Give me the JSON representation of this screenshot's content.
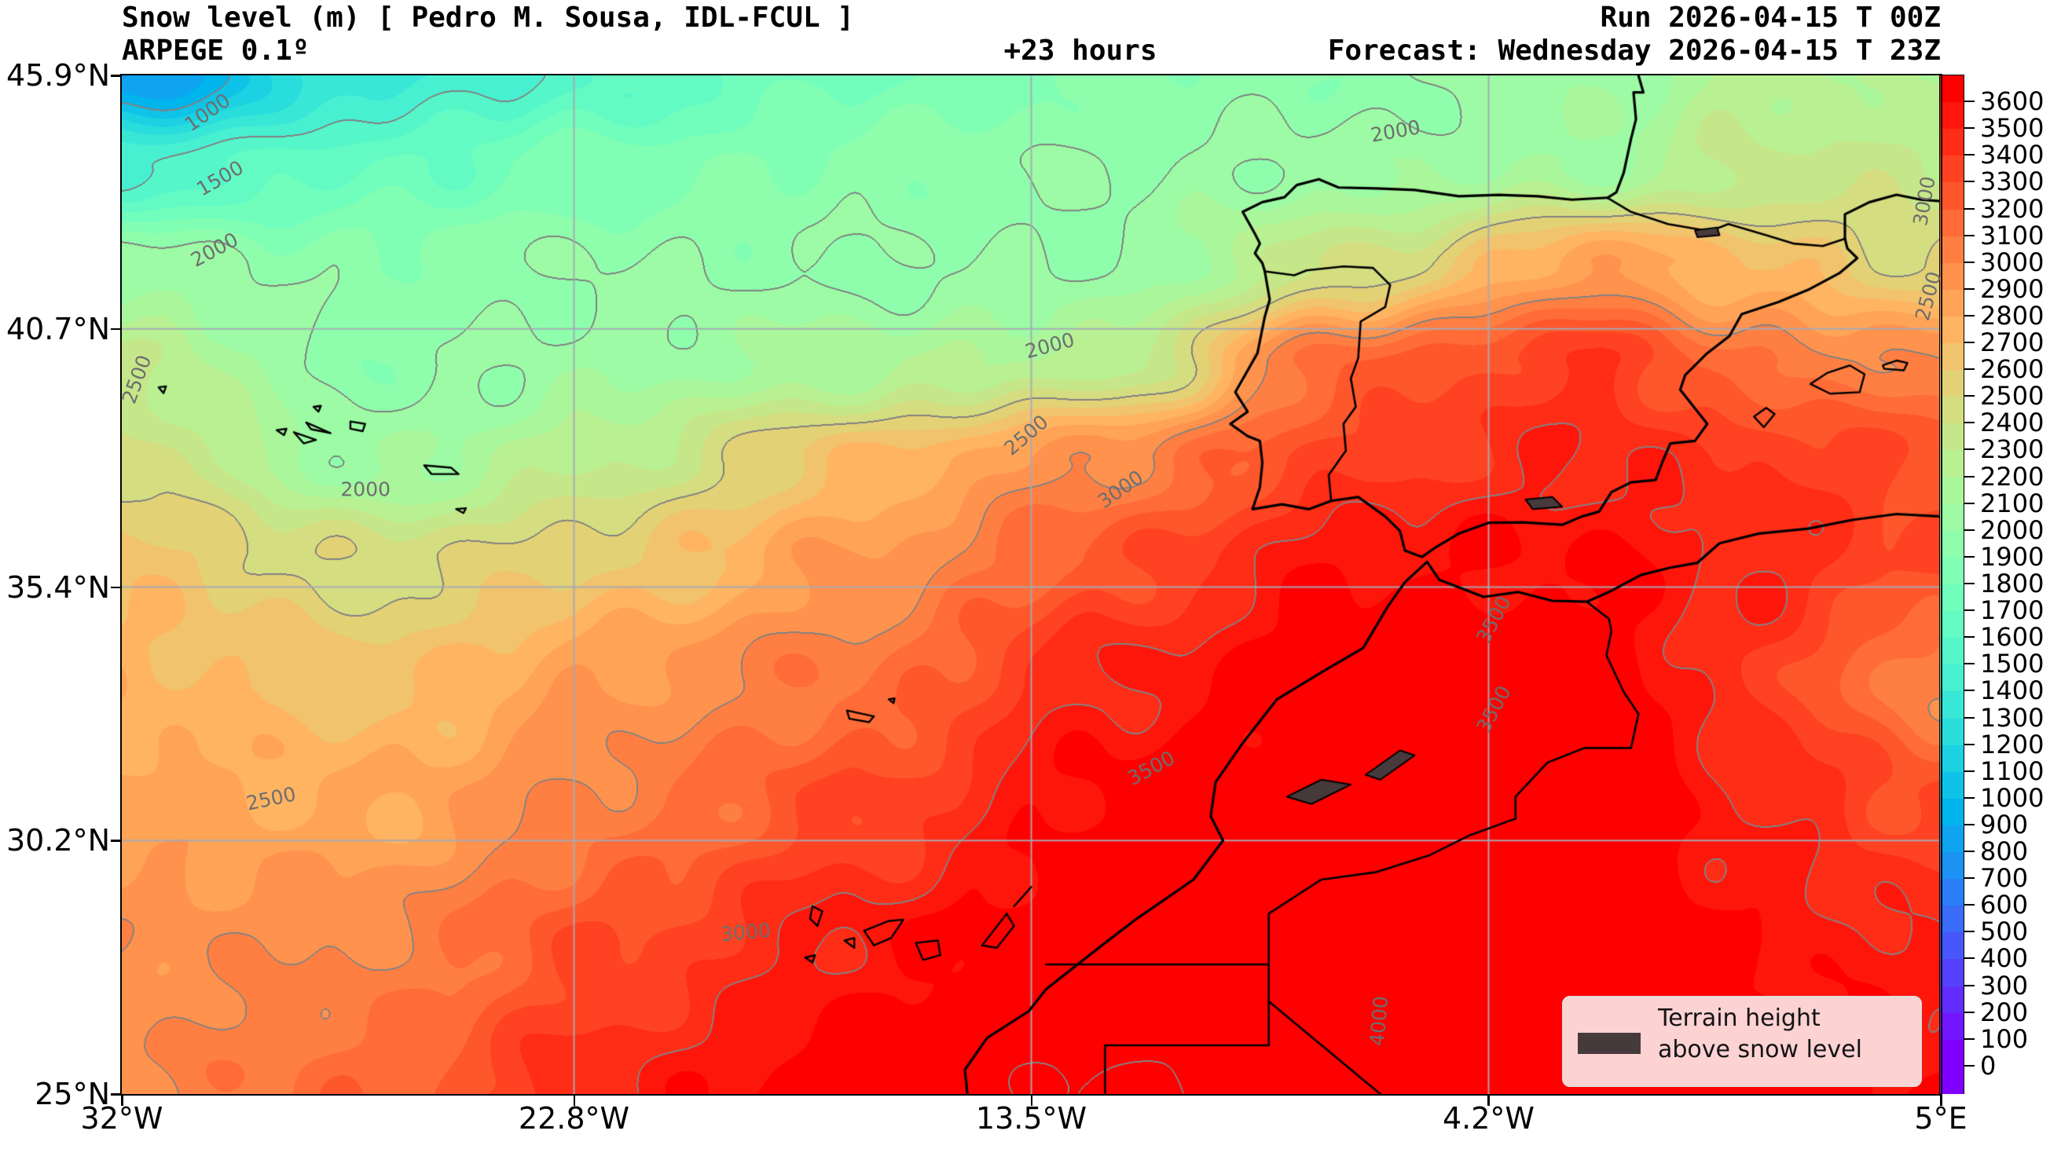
{
  "header": {
    "title": "Snow level (m) [ Pedro M. Sousa, IDL-FCUL ]",
    "model": "ARPEGE 0.1º",
    "lead": "+23 hours",
    "run": "Run 2026-04-15 T 00Z",
    "forecast": "Forecast: Wednesday 2026-04-15 T 23Z"
  },
  "axes": {
    "x_ticks": [
      {
        "label": "32°W",
        "f": 0.0
      },
      {
        "label": "22.8°W",
        "f": 0.2486
      },
      {
        "label": "13.5°W",
        "f": 0.5
      },
      {
        "label": "4.2°W",
        "f": 0.7514
      },
      {
        "label": "5°E",
        "f": 1.0
      }
    ],
    "y_ticks": [
      {
        "label": "45.9°N",
        "f": 0.0
      },
      {
        "label": "40.7°N",
        "f": 0.2488
      },
      {
        "label": "35.4°N",
        "f": 0.5024
      },
      {
        "label": "30.2°N",
        "f": 0.7512
      },
      {
        "label": "25°N",
        "f": 1.0
      }
    ]
  },
  "colorbar": {
    "colormap": "rainbow",
    "min": 0,
    "max": 3600,
    "step": 100,
    "ticks": [
      "3600",
      "3500",
      "3400",
      "3300",
      "3200",
      "3100",
      "3000",
      "2900",
      "2800",
      "2700",
      "2600",
      "2500",
      "2400",
      "2300",
      "2200",
      "2100",
      "2000",
      "1900",
      "1800",
      "1700",
      "1600",
      "1500",
      "1400",
      "1300",
      "1200",
      "1100",
      "1000",
      "900",
      "800",
      "700",
      "600",
      "500",
      "400",
      "300",
      "200",
      "100",
      "0"
    ]
  },
  "legend": {
    "lines": [
      "Terrain height",
      "above snow level"
    ],
    "swatch_color": "#473a3c",
    "bg_color": "#fcd2d3"
  },
  "chart_data": {
    "type": "heatmap",
    "subtype": "filled-contour-map",
    "title": "Snow level (m)",
    "units": "m",
    "model": "ARPEGE 0.1º",
    "lead_hours": 23,
    "colormap": "rainbow",
    "fill_interval": 100,
    "line_interval": 500,
    "range": [
      0,
      3600
    ],
    "extent": {
      "lon": [
        -32,
        5
      ],
      "lat": [
        25,
        45.9
      ]
    },
    "grid": {
      "lons": [
        -32,
        -27,
        -22,
        -17,
        -12,
        -7,
        -2,
        1,
        5
      ],
      "lats": [
        45.9,
        44,
        42,
        40,
        38,
        36,
        33.5,
        31,
        28,
        25
      ],
      "values": [
        [
          800,
          1350,
          1600,
          1800,
          1900,
          1950,
          2050,
          2250,
          2150
        ],
        [
          1500,
          1700,
          1850,
          1950,
          2000,
          2050,
          2100,
          2300,
          2350
        ],
        [
          2050,
          1950,
          2000,
          1980,
          2000,
          2400,
          2900,
          2700,
          2500
        ],
        [
          2300,
          1950,
          2050,
          2150,
          2250,
          3200,
          3400,
          3100,
          3000
        ],
        [
          2450,
          2050,
          2300,
          2700,
          3000,
          3350,
          3500,
          3400,
          3300
        ],
        [
          2650,
          2450,
          2600,
          2900,
          3250,
          3600,
          3600,
          3500,
          3300
        ],
        [
          2750,
          2650,
          2900,
          3100,
          3500,
          3700,
          3700,
          3400,
          3000
        ],
        [
          2850,
          2800,
          3050,
          3300,
          3650,
          3750,
          3750,
          3500,
          3300
        ],
        [
          2950,
          3000,
          3300,
          3550,
          3750,
          3800,
          3800,
          3600,
          3500
        ],
        [
          3000,
          3150,
          3500,
          3700,
          4050,
          3900,
          3850,
          3700,
          3600
        ]
      ]
    },
    "contour_labels": [
      {
        "v": "1000",
        "fx": 0.047,
        "fy": 0.036,
        "rot": -35
      },
      {
        "v": "1500",
        "fx": 0.054,
        "fy": 0.101,
        "rot": -30
      },
      {
        "v": "2000",
        "fx": 0.051,
        "fy": 0.171,
        "rot": -28
      },
      {
        "v": "2000",
        "fx": 0.7,
        "fy": 0.055,
        "rot": -10
      },
      {
        "v": "2000",
        "fx": 0.134,
        "fy": 0.406,
        "rot": 0
      },
      {
        "v": "2000",
        "fx": 0.51,
        "fy": 0.265,
        "rot": -15
      },
      {
        "v": "2500",
        "fx": 0.008,
        "fy": 0.298,
        "rot": -70
      },
      {
        "v": "2500",
        "fx": 0.082,
        "fy": 0.71,
        "rot": -12
      },
      {
        "v": "2500",
        "fx": 0.497,
        "fy": 0.353,
        "rot": -40
      },
      {
        "v": "2500",
        "fx": 0.993,
        "fy": 0.217,
        "rot": -75
      },
      {
        "v": "3000",
        "fx": 0.343,
        "fy": 0.841,
        "rot": -5
      },
      {
        "v": "3000",
        "fx": 0.549,
        "fy": 0.406,
        "rot": -35
      },
      {
        "v": "3000",
        "fx": 0.991,
        "fy": 0.123,
        "rot": -80
      },
      {
        "v": "3500",
        "fx": 0.566,
        "fy": 0.68,
        "rot": -28
      },
      {
        "v": "3500",
        "fx": 0.754,
        "fy": 0.534,
        "rot": -62
      },
      {
        "v": "3500",
        "fx": 0.754,
        "fy": 0.622,
        "rot": -62
      },
      {
        "v": "4000",
        "fx": 0.691,
        "fy": 0.928,
        "rot": -85
      }
    ],
    "features": [
      "Iberian Peninsula",
      "France",
      "Morocco",
      "Algeria",
      "Western Sahara",
      "Balearic Islands",
      "Canary Islands",
      "Madeira",
      "Azores"
    ],
    "overlay_legend": "Terrain height above snow level"
  }
}
